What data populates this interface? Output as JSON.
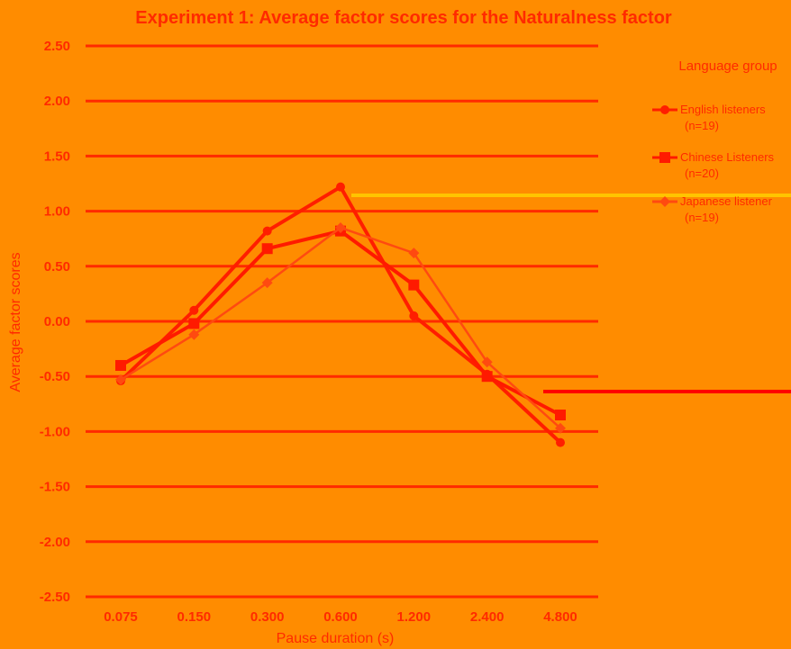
{
  "colors": {
    "background": "#ff8c00",
    "english": "#ff1e00",
    "chinese": "#ff1a00",
    "japanese": "#ff4a10",
    "grid": "#ff2a00",
    "yellow_line": "#ffc400",
    "red_line": "#ff0000"
  },
  "chart_data": {
    "type": "line",
    "title": "Experiment 1: Average factor scores for the Naturalness factor",
    "xlabel": "Pause duration (s)",
    "ylabel": "Average factor scores",
    "categories": [
      "0.075",
      "0.150",
      "0.300",
      "0.600",
      "1.200",
      "2.400",
      "4.800"
    ],
    "ylim": [
      -2.5,
      2.5
    ],
    "yticks": [
      "2.50",
      "2.00",
      "1.50",
      "1.00",
      "0.50",
      "0.00",
      "-0.50",
      "-1.00",
      "-1.50",
      "-2.00",
      "-2.50"
    ],
    "grid": true,
    "legend": {
      "title": "Language group",
      "placement": "right"
    },
    "series": [
      {
        "name": "English listeners",
        "n_label": "(n=19)",
        "values": [
          -0.54,
          0.1,
          0.82,
          1.22,
          0.05,
          -0.48,
          -1.1
        ],
        "marker": "circle",
        "color": "#ff1e00"
      },
      {
        "name": "Chinese Listeners",
        "n_label": "(n=20)",
        "values": [
          -0.4,
          -0.02,
          0.66,
          0.82,
          0.33,
          -0.5,
          -0.85
        ],
        "marker": "square",
        "color": "#ff1a00"
      },
      {
        "name": "Japanese listener",
        "n_label": "(n=19)",
        "values": [
          -0.53,
          -0.12,
          0.35,
          0.85,
          0.62,
          -0.37,
          -0.97
        ],
        "marker": "diamond",
        "color": "#ff4a10"
      }
    ]
  }
}
